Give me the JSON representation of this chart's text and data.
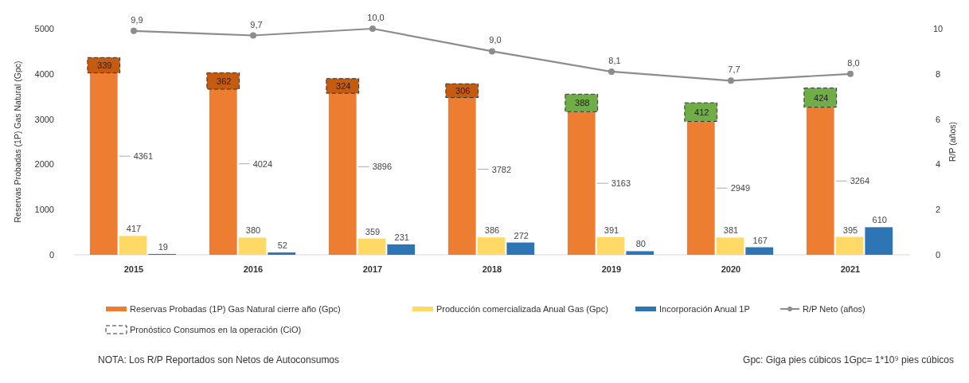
{
  "chart_data": {
    "type": "bar",
    "categories": [
      "2015",
      "2016",
      "2017",
      "2018",
      "2019",
      "2020",
      "2021"
    ],
    "ylabel": "Reservas Probadas (1P) Gas Natural (Gpc)",
    "y2label": "R/P (años)",
    "ylim": [
      0,
      5000
    ],
    "yticks": [
      0,
      1000,
      2000,
      3000,
      4000,
      5000
    ],
    "y2lim": [
      0,
      10
    ],
    "y2ticks": [
      0,
      2,
      4,
      6,
      8,
      10
    ],
    "legend": "bottom",
    "grid": false,
    "series": [
      {
        "name": "Reservas Probadas (1P) Gas Natural cierre año (Gpc)",
        "color": "#ed7d31",
        "values": [
          4361,
          4024,
          3896,
          3782,
          3163,
          2949,
          3264
        ],
        "value_labels": [
          "4361",
          "4024",
          "3896",
          "3782",
          "3163",
          "2949",
          "3264"
        ]
      },
      {
        "name": "Producción comercializada Anual Gas (Gpc)",
        "color": "#ffd966",
        "values": [
          417,
          380,
          359,
          386,
          391,
          381,
          395
        ],
        "value_labels": [
          "417",
          "380",
          "359",
          "386",
          "391",
          "381",
          "395"
        ]
      },
      {
        "name": "Incorporación Anual 1P",
        "color": "#2e75b6",
        "values": [
          19,
          52,
          231,
          272,
          80,
          167,
          610
        ],
        "value_labels": [
          "19",
          "52",
          "231",
          "272",
          "80",
          "167",
          "610"
        ]
      },
      {
        "name": "R/P Neto (años)",
        "type": "line",
        "axis": "y2",
        "color": "#8c8c8c",
        "marker": "circle",
        "line_style": "solid",
        "values": [
          9.9,
          9.7,
          10.0,
          9.0,
          8.1,
          7.7,
          8.0
        ],
        "value_labels": [
          "9,9",
          "9,7",
          "10,0",
          "9,0",
          "8,1",
          "7,7",
          "8,0"
        ]
      },
      {
        "name": "Pronóstico Consumos en la operación (CiO)",
        "line_style": "dashed",
        "colors": [
          "#c55a11",
          "#c55a11",
          "#c55a11",
          "#c55a11",
          "#70ad47",
          "#70ad47",
          "#70ad47"
        ],
        "base": [
          4022,
          3662,
          3572,
          3476,
          3163,
          2949,
          3264
        ],
        "values": [
          339,
          362,
          324,
          306,
          388,
          412,
          424
        ],
        "value_labels": [
          "339",
          "362",
          "324",
          "306",
          "388",
          "412",
          "424"
        ]
      }
    ],
    "annotations": [
      "NOTA: Los R/P Reportados son Netos de Autoconsumos",
      "Gpc: Giga pies cúbicos 1Gpc= 1*10⁹ pies cúbicos"
    ]
  }
}
